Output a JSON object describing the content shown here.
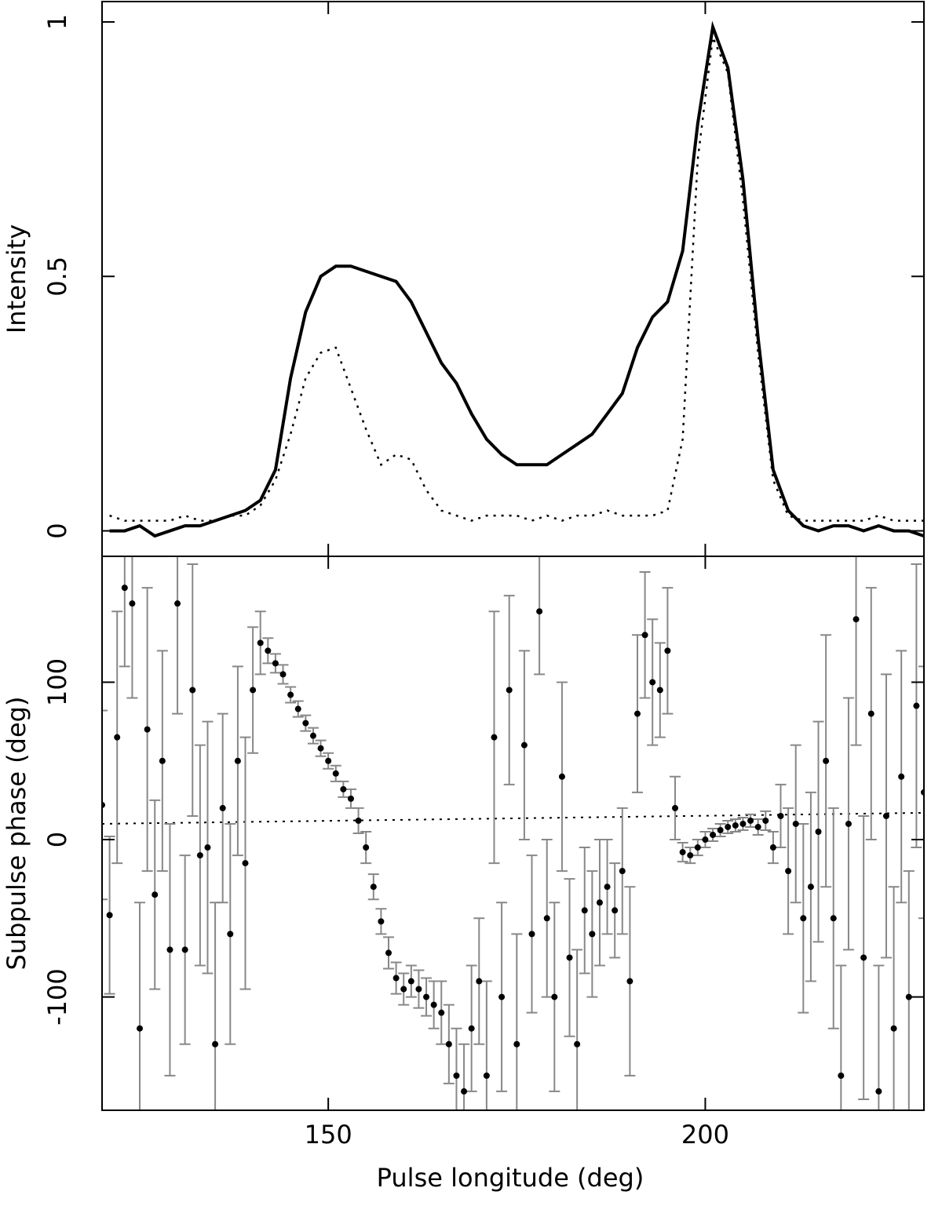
{
  "chart_data": [
    {
      "type": "line",
      "ylabel": "Intensity",
      "xlim": [
        120,
        229
      ],
      "ylim": [
        -0.05,
        1.04
      ],
      "yticks": [
        0,
        0.5,
        1
      ],
      "x": [
        121,
        123,
        125,
        127,
        129,
        131,
        133,
        135,
        137,
        139,
        141,
        143,
        145,
        147,
        149,
        151,
        153,
        155,
        157,
        159,
        161,
        163,
        165,
        167,
        169,
        171,
        173,
        175,
        177,
        179,
        181,
        183,
        185,
        187,
        189,
        191,
        193,
        195,
        197,
        199,
        201,
        203,
        205,
        207,
        209,
        211,
        213,
        215,
        217,
        219,
        221,
        223,
        225,
        227,
        229
      ],
      "series": [
        {
          "style": "solid",
          "color": "#000000",
          "values": [
            0.0,
            0.0,
            0.01,
            -0.01,
            0.0,
            0.01,
            0.01,
            0.02,
            0.03,
            0.04,
            0.06,
            0.12,
            0.3,
            0.43,
            0.5,
            0.52,
            0.52,
            0.51,
            0.5,
            0.49,
            0.45,
            0.39,
            0.33,
            0.29,
            0.23,
            0.18,
            0.15,
            0.13,
            0.13,
            0.13,
            0.15,
            0.17,
            0.19,
            0.23,
            0.27,
            0.36,
            0.42,
            0.45,
            0.55,
            0.8,
            0.99,
            0.91,
            0.69,
            0.38,
            0.12,
            0.04,
            0.01,
            0.0,
            0.01,
            0.01,
            0.0,
            0.01,
            0.0,
            0.0,
            -0.01
          ]
        },
        {
          "style": "dotted",
          "color": "#000000",
          "values": [
            0.03,
            0.02,
            0.02,
            0.02,
            0.02,
            0.03,
            0.02,
            0.02,
            0.03,
            0.03,
            0.05,
            0.1,
            0.19,
            0.3,
            0.35,
            0.36,
            0.28,
            0.2,
            0.13,
            0.15,
            0.14,
            0.08,
            0.04,
            0.03,
            0.02,
            0.03,
            0.03,
            0.03,
            0.02,
            0.03,
            0.02,
            0.03,
            0.03,
            0.04,
            0.03,
            0.03,
            0.03,
            0.04,
            0.18,
            0.73,
            0.97,
            0.9,
            0.65,
            0.35,
            0.1,
            0.03,
            0.02,
            0.02,
            0.02,
            0.02,
            0.02,
            0.03,
            0.02,
            0.02,
            0.02
          ]
        }
      ]
    },
    {
      "type": "errorbar",
      "ylabel": "Subpulse phase (deg)",
      "xlabel": "Pulse longitude (deg)",
      "xlim": [
        120,
        229
      ],
      "xticks": [
        150,
        200
      ],
      "ylim": [
        -172,
        180
      ],
      "yticks": [
        -100,
        0,
        100
      ],
      "color": "#000000",
      "error_color": "#888888",
      "x": [
        120,
        121,
        122,
        123,
        124,
        125,
        126,
        127,
        128,
        129,
        130,
        131,
        132,
        133,
        134,
        135,
        136,
        137,
        138,
        139,
        140,
        141,
        142,
        143,
        144,
        145,
        146,
        147,
        148,
        149,
        150,
        151,
        152,
        153,
        154,
        155,
        156,
        157,
        158,
        159,
        160,
        161,
        162,
        163,
        164,
        165,
        166,
        167,
        168,
        169,
        170,
        171,
        172,
        173,
        174,
        175,
        176,
        177,
        178,
        179,
        180,
        181,
        182,
        183,
        184,
        185,
        186,
        187,
        188,
        189,
        190,
        191,
        192,
        193,
        194,
        195,
        196,
        197,
        198,
        199,
        200,
        201,
        202,
        203,
        204,
        205,
        206,
        207,
        208,
        209,
        210,
        211,
        212,
        213,
        214,
        215,
        216,
        217,
        218,
        219,
        220,
        221,
        222,
        223,
        224,
        225,
        226,
        227,
        228,
        229
      ],
      "values": [
        22,
        -48,
        65,
        160,
        150,
        -120,
        70,
        -35,
        50,
        -70,
        150,
        -70,
        95,
        -10,
        -5,
        -130,
        20,
        -60,
        50,
        -15,
        95,
        125,
        120,
        112,
        105,
        92,
        83,
        74,
        66,
        58,
        50,
        42,
        32,
        26,
        12,
        -5,
        -30,
        -52,
        -72,
        -88,
        -95,
        -90,
        -95,
        -100,
        -105,
        -110,
        -130,
        -150,
        -160,
        -120,
        -90,
        -150,
        65,
        -100,
        95,
        -130,
        60,
        -60,
        145,
        -50,
        -100,
        40,
        -75,
        -130,
        -45,
        -60,
        -40,
        -30,
        -45,
        -20,
        -90,
        80,
        130,
        100,
        95,
        120,
        20,
        -8,
        -10,
        -5,
        0,
        3,
        6,
        8,
        9,
        10,
        12,
        8,
        12,
        -5,
        15,
        -20,
        10,
        -50,
        -30,
        5,
        50,
        -50,
        -150,
        10,
        140,
        -75,
        80,
        -160,
        15,
        -120,
        40,
        -100,
        85,
        30
      ],
      "errors": [
        60,
        50,
        80,
        50,
        60,
        80,
        90,
        60,
        70,
        80,
        70,
        60,
        80,
        70,
        80,
        90,
        60,
        70,
        60,
        80,
        40,
        20,
        8,
        6,
        6,
        5,
        5,
        5,
        5,
        5,
        5,
        5,
        5,
        6,
        8,
        10,
        8,
        8,
        10,
        10,
        10,
        10,
        12,
        12,
        15,
        20,
        25,
        30,
        30,
        40,
        40,
        60,
        80,
        60,
        60,
        70,
        60,
        50,
        40,
        50,
        60,
        60,
        50,
        60,
        40,
        40,
        40,
        30,
        30,
        40,
        60,
        50,
        40,
        40,
        30,
        40,
        20,
        6,
        5,
        5,
        5,
        4,
        4,
        4,
        4,
        4,
        4,
        5,
        6,
        10,
        20,
        40,
        50,
        60,
        60,
        70,
        80,
        70,
        70,
        80,
        80,
        90,
        80,
        80,
        90,
        90,
        80,
        80,
        90,
        80
      ],
      "fit": {
        "style": "dotted",
        "x": [
          120,
          229
        ],
        "values": [
          10,
          17
        ]
      }
    }
  ]
}
